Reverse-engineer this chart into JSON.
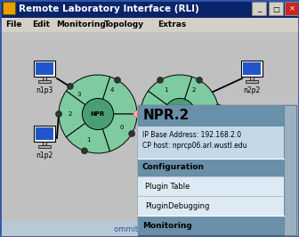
{
  "title": "Remote Laboratory Interface (RLI)",
  "menu_items": [
    "File",
    "Edit",
    "Monitoring",
    "Topology",
    "Extras"
  ],
  "title_bar_color": "#0a246a",
  "title_bar_text_color": "#ffffff",
  "menu_bar_color": "#d4d0c8",
  "canvas_bg": "#c0c0c0",
  "node_color": "#7ecba0",
  "node_dark_color": "#4a9e72",
  "info_line1": "IP Base Address: 192.168.2.0",
  "info_line2": "CP host: nprcp06.arl.wustl.edu",
  "config_label": "Configuration",
  "plugin_table": "Plugin Table",
  "plugin_debug": "PluginDebugging",
  "monitoring_label": "Monitoring",
  "bottom_bar_text": "ommit Con",
  "popup_bg": "#7a9eb8",
  "popup_info_bg": "#c4d8e8",
  "popup_item_bg": "#dceaf4",
  "popup_title": "NPR.2",
  "java_icon_color": "#e8a000"
}
